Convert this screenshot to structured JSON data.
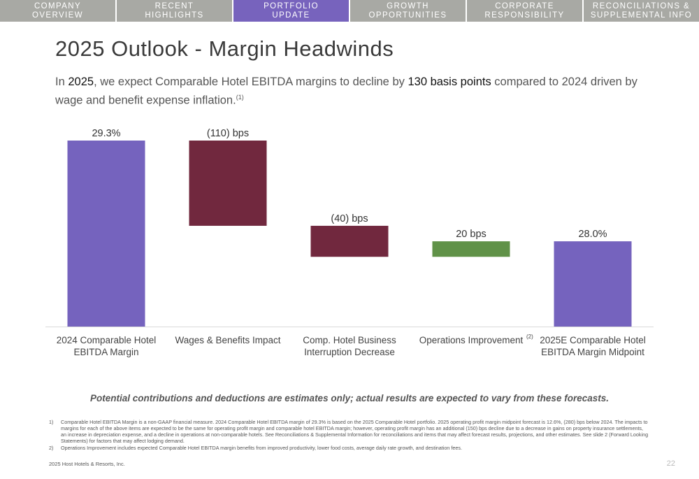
{
  "nav": {
    "tabs": [
      {
        "label": "COMPANY\nOVERVIEW",
        "active": false
      },
      {
        "label": "RECENT\nHIGHLIGHTS",
        "active": false
      },
      {
        "label": "PORTFOLIO\nUPDATE",
        "active": true
      },
      {
        "label": "GROWTH\nOPPORTUNITIES",
        "active": false
      },
      {
        "label": "CORPORATE\nRESPONSIBILITY",
        "active": false
      },
      {
        "label": "RECONCILIATIONS &\nSUPPLEMENTAL INFO",
        "active": false
      }
    ]
  },
  "page": {
    "title": "2025 Outlook - Margin Headwinds",
    "subtitle": {
      "pre": "In ",
      "year": "2025",
      "mid": ", we expect Comparable Hotel EBITDA margins to decline by ",
      "highlight": "130 basis points",
      "post": " compared to 2024 driven by wage and benefit expense inflation.",
      "footnote_ref": "(1)"
    },
    "disclaimer": "Potential contributions and deductions are estimates only; actual results are expected to vary from these forecasts.",
    "footnotes": [
      {
        "num": "1)",
        "text": "Comparable Hotel EBITDA Margin is a non-GAAP financial measure. 2024 Comparable Hotel EBITDA margin of 29.3% is based on the 2025 Comparable Hotel portfolio. 2025 operating profit margin midpoint forecast is 12.6%, (280) bps below 2024. The impacts to margins for each of the above items are expected to be the same for operating profit margin and comparable hotel EBITDA margin; however, operating profit margin has an additional (150) bps decline due to a decrease in gains on property insurance settlements, an increase in depreciation expense, and a decline in operations at non-comparable hotels. See Reconciliations & Supplemental Information for reconciliations and items that may affect forecast results, projections, and other estimates. See slide 2 (Forward Looking Statements) for factors that may affect lodging demand."
      },
      {
        "num": "2)",
        "text": "Operations Improvement includes expected Comparable Hotel EBITDA margin benefits from improved productivity, lower food costs, average daily rate growth, and destination fees."
      }
    ],
    "copyright": "2025 Host Hotels & Resorts, Inc.",
    "page_number": "22"
  },
  "chart_data": {
    "type": "bar",
    "subtype": "waterfall",
    "unit": "% margin",
    "baseline": 26.9,
    "categories": [
      {
        "lines": [
          "2024 Comparable Hotel",
          "EBITDA Margin"
        ],
        "sup": ""
      },
      {
        "lines": [
          "Wages & Benefits Impact"
        ],
        "sup": ""
      },
      {
        "lines": [
          "Comp. Hotel Business",
          "Interruption Decrease"
        ],
        "sup": ""
      },
      {
        "lines": [
          "Operations Improvement"
        ],
        "sup": "(2)"
      },
      {
        "lines": [
          "2025E Comparable Hotel",
          "EBITDA Margin Midpoint"
        ],
        "sup": ""
      }
    ],
    "bars": [
      {
        "kind": "total",
        "start": 26.9,
        "end": 29.3,
        "label": "29.3%",
        "color": "#7563be"
      },
      {
        "kind": "decrease",
        "start": 29.3,
        "end": 28.2,
        "label": "(110) bps",
        "color": "#71283e"
      },
      {
        "kind": "decrease",
        "start": 28.2,
        "end": 27.8,
        "label": "(40) bps",
        "color": "#71283e"
      },
      {
        "kind": "increase",
        "start": 27.8,
        "end": 28.0,
        "label": "20 bps",
        "color": "#609248"
      },
      {
        "kind": "total",
        "start": 26.9,
        "end": 28.0,
        "label": "28.0%",
        "color": "#7563be"
      }
    ],
    "axis_color": "#d9d9d9"
  }
}
